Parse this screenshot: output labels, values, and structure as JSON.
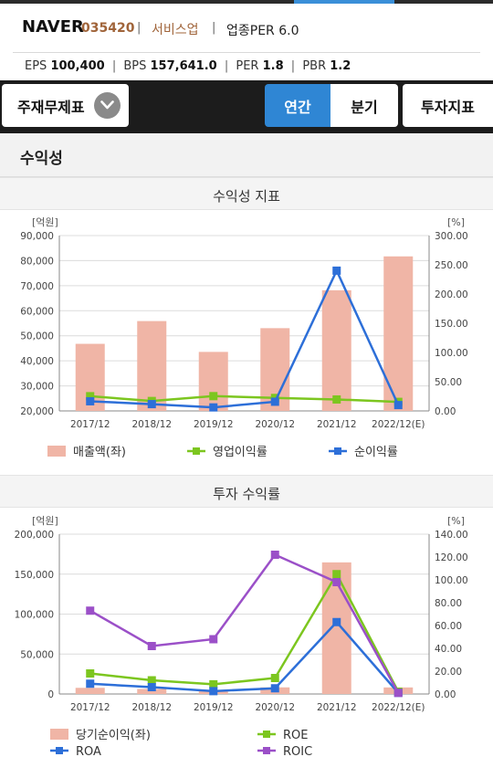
{
  "header": {
    "name": "NAVER",
    "code": "035420",
    "sector": "서비스업",
    "per_label": "업종PER 6.0"
  },
  "metrics": {
    "eps_label": "EPS",
    "eps": "100,400",
    "bps_label": "BPS",
    "bps": "157,641.0",
    "per_label": "PER",
    "per": "1.8",
    "pbr_label": "PBR",
    "pbr": "1.2"
  },
  "nav": {
    "financials": "주재무제표",
    "annual": "연간",
    "quarterly": "분기",
    "investment": "투자지표"
  },
  "colors": {
    "accent": "#2f86d4",
    "bar": "#f0b5a6",
    "green": "#7cc61f",
    "blue": "#2d6fd8",
    "purple": "#9b50c8"
  },
  "section_title": "수익성",
  "chart_data": [
    {
      "type": "bar+line",
      "title": "수익성 지표",
      "left_unit": "[억원]",
      "right_unit": "[%]",
      "categories": [
        "2017/12",
        "2018/12",
        "2019/12",
        "2020/12",
        "2021/12",
        "2022/12(E)"
      ],
      "left_ticks": [
        "20,000",
        "30,000",
        "40,000",
        "50,000",
        "60,000",
        "70,000",
        "80,000",
        "90,000"
      ],
      "right_ticks": [
        "0.00",
        "50.00",
        "100.00",
        "150.00",
        "200.00",
        "250.00",
        "300.00"
      ],
      "left_range": [
        20000,
        90000
      ],
      "right_range": [
        0,
        300
      ],
      "bar_series": {
        "name": "매출액(좌)",
        "values": [
          46785,
          55869,
          43562,
          53041,
          68176,
          81700
        ]
      },
      "line_series": [
        {
          "name": "영업이익률",
          "color": "#7cc61f",
          "values": [
            25.2,
            17.0,
            25.3,
            22.2,
            19.6,
            15.5
          ]
        },
        {
          "name": "순이익률",
          "color": "#2d6fd8",
          "values": [
            16.5,
            11.6,
            6.0,
            15.7,
            240.0,
            10.0
          ]
        }
      ]
    },
    {
      "type": "bar+line",
      "title": "투자 수익률",
      "left_unit": "[억원]",
      "right_unit": "[%]",
      "categories": [
        "2017/12",
        "2018/12",
        "2019/12",
        "2020/12",
        "2021/12",
        "2022/12(E)"
      ],
      "left_ticks": [
        "0",
        "50,000",
        "100,000",
        "150,000",
        "200,000"
      ],
      "right_ticks": [
        "0.00",
        "20.00",
        "40.00",
        "60.00",
        "80.00",
        "100.00",
        "120.00",
        "140.00"
      ],
      "left_range": [
        0,
        200000
      ],
      "right_range": [
        0,
        140
      ],
      "bar_series": {
        "name": "당기순이익(좌)",
        "values": [
          7700,
          6300,
          4000,
          8300,
          164700,
          8200
        ]
      },
      "line_series": [
        {
          "name": "ROE",
          "color": "#7cc61f",
          "values": [
            18.0,
            12.0,
            8.5,
            14.0,
            105.0,
            2.0
          ]
        },
        {
          "name": "ROA",
          "color": "#2d6fd8",
          "values": [
            9.0,
            6.0,
            2.5,
            5.0,
            63.0,
            1.0
          ]
        },
        {
          "name": "ROIC",
          "color": "#9b50c8",
          "values": [
            73.0,
            42.0,
            48.0,
            122.0,
            98.0,
            1.0
          ]
        }
      ]
    }
  ]
}
